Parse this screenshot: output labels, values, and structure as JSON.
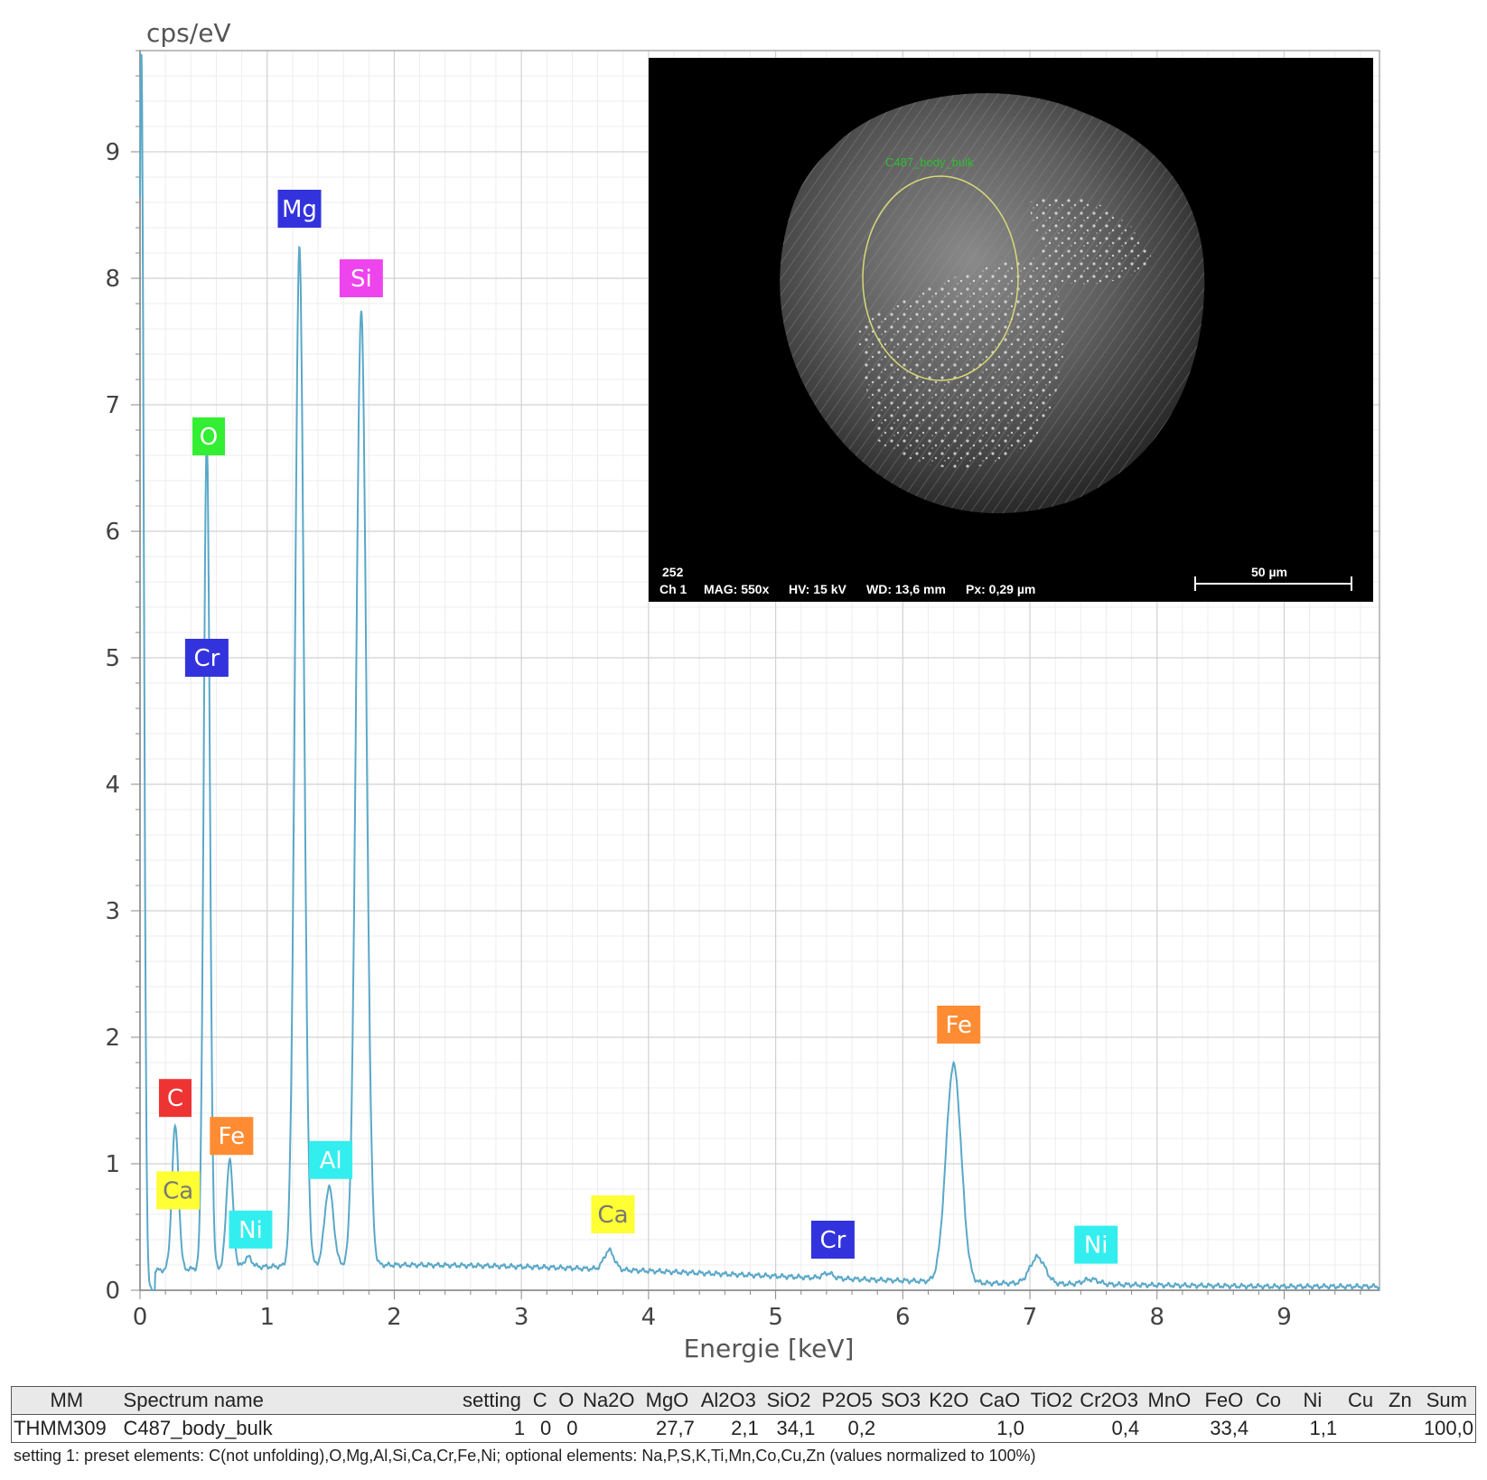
{
  "chart_data": {
    "type": "line",
    "ylabel": "cps/eV",
    "xlabel": "Energie [keV]",
    "xlim": [
      0,
      9.75
    ],
    "ylim": [
      0,
      9.8
    ],
    "xticks": [
      0,
      1,
      2,
      3,
      4,
      5,
      6,
      7,
      8,
      9
    ],
    "yticks": [
      0,
      1,
      2,
      3,
      4,
      5,
      6,
      7,
      8,
      9
    ],
    "grid": true,
    "line_color": "#5aa8c8",
    "peaks": [
      {
        "x": 0.01,
        "y": 9.8,
        "w": 0.02
      },
      {
        "x": 0.277,
        "y": 1.13,
        "w": 0.026
      },
      {
        "x": 0.525,
        "y": 6.55,
        "w": 0.024
      },
      {
        "x": 0.705,
        "y": 0.86,
        "w": 0.026
      },
      {
        "x": 0.85,
        "y": 0.08,
        "w": 0.03
      },
      {
        "x": 1.254,
        "y": 8.05,
        "w": 0.035
      },
      {
        "x": 1.487,
        "y": 0.62,
        "w": 0.035
      },
      {
        "x": 1.74,
        "y": 7.55,
        "w": 0.04
      },
      {
        "x": 3.69,
        "y": 0.15,
        "w": 0.04
      },
      {
        "x": 5.41,
        "y": 0.04,
        "w": 0.04
      },
      {
        "x": 6.4,
        "y": 1.72,
        "w": 0.06
      },
      {
        "x": 7.06,
        "y": 0.21,
        "w": 0.06
      },
      {
        "x": 7.48,
        "y": 0.04,
        "w": 0.06
      }
    ],
    "peak_labels": [
      {
        "text": "Mg",
        "x": 1.254,
        "y": 8.55,
        "bg": "#3333dd",
        "fg": "#ffffff"
      },
      {
        "text": "Si",
        "x": 1.74,
        "y": 8.0,
        "bg": "#ee44ee",
        "fg": "#ffffff"
      },
      {
        "text": "O",
        "x": 0.54,
        "y": 6.75,
        "bg": "#33ee33",
        "fg": "#ffffff"
      },
      {
        "text": "Cr",
        "x": 0.525,
        "y": 5.0,
        "bg": "#3333dd",
        "fg": "#ffffff"
      },
      {
        "text": "C",
        "x": 0.277,
        "y": 1.52,
        "bg": "#ee3333",
        "fg": "#ffffff"
      },
      {
        "text": "Fe",
        "x": 0.72,
        "y": 1.22,
        "bg": "#ff8c33",
        "fg": "#ffffff"
      },
      {
        "text": "Ca",
        "x": 0.3,
        "y": 0.79,
        "bg": "#ffff33",
        "fg": "#777777"
      },
      {
        "text": "Ni",
        "x": 0.87,
        "y": 0.48,
        "bg": "#33eeee",
        "fg": "#ffffff"
      },
      {
        "text": "Al",
        "x": 1.5,
        "y": 1.03,
        "bg": "#33eeee",
        "fg": "#ffffff"
      },
      {
        "text": "Ca",
        "x": 3.72,
        "y": 0.6,
        "bg": "#ffff33",
        "fg": "#777777"
      },
      {
        "text": "Cr",
        "x": 5.45,
        "y": 0.4,
        "bg": "#3333dd",
        "fg": "#ffffff"
      },
      {
        "text": "Fe",
        "x": 6.44,
        "y": 2.1,
        "bg": "#ff8c33",
        "fg": "#ffffff"
      },
      {
        "text": "Ni",
        "x": 7.52,
        "y": 0.36,
        "bg": "#33eeee",
        "fg": "#ffffff"
      }
    ]
  },
  "sem_image": {
    "roi_label": "C487_body_bulk",
    "image_number": "252",
    "channel": "Ch 1",
    "mag": "MAG: 550x",
    "hv": "HV: 15 kV",
    "wd": "WD: 13,6 mm",
    "px": "Px: 0,29 µm",
    "scale_bar": "50 µm"
  },
  "table": {
    "headers": [
      "MM",
      "Spectrum name",
      "setting",
      "C",
      "O",
      "Na2O",
      "MgO",
      "Al2O3",
      "SiO2",
      "P2O5",
      "SO3",
      "K2O",
      "CaO",
      "TiO2",
      "Cr2O3",
      "MnO",
      "FeO",
      "Co",
      "Ni",
      "Cu",
      "Zn",
      "Sum"
    ],
    "row": [
      "THMM309",
      "C487_body_bulk",
      "1",
      "0",
      "0",
      "",
      "27,7",
      "2,1",
      "34,1",
      "0,2",
      "",
      "",
      "1,0",
      "",
      "0,4",
      "",
      "33,4",
      "",
      "1,1",
      "",
      "",
      "100,0"
    ]
  },
  "footnote": "setting 1: preset elements: C(not unfolding),O,Mg,Al,Si,Ca,Cr,Fe,Ni; optional elements: Na,P,S,K,Ti,Mn,Co,Cu,Zn (values normalized to 100%)"
}
